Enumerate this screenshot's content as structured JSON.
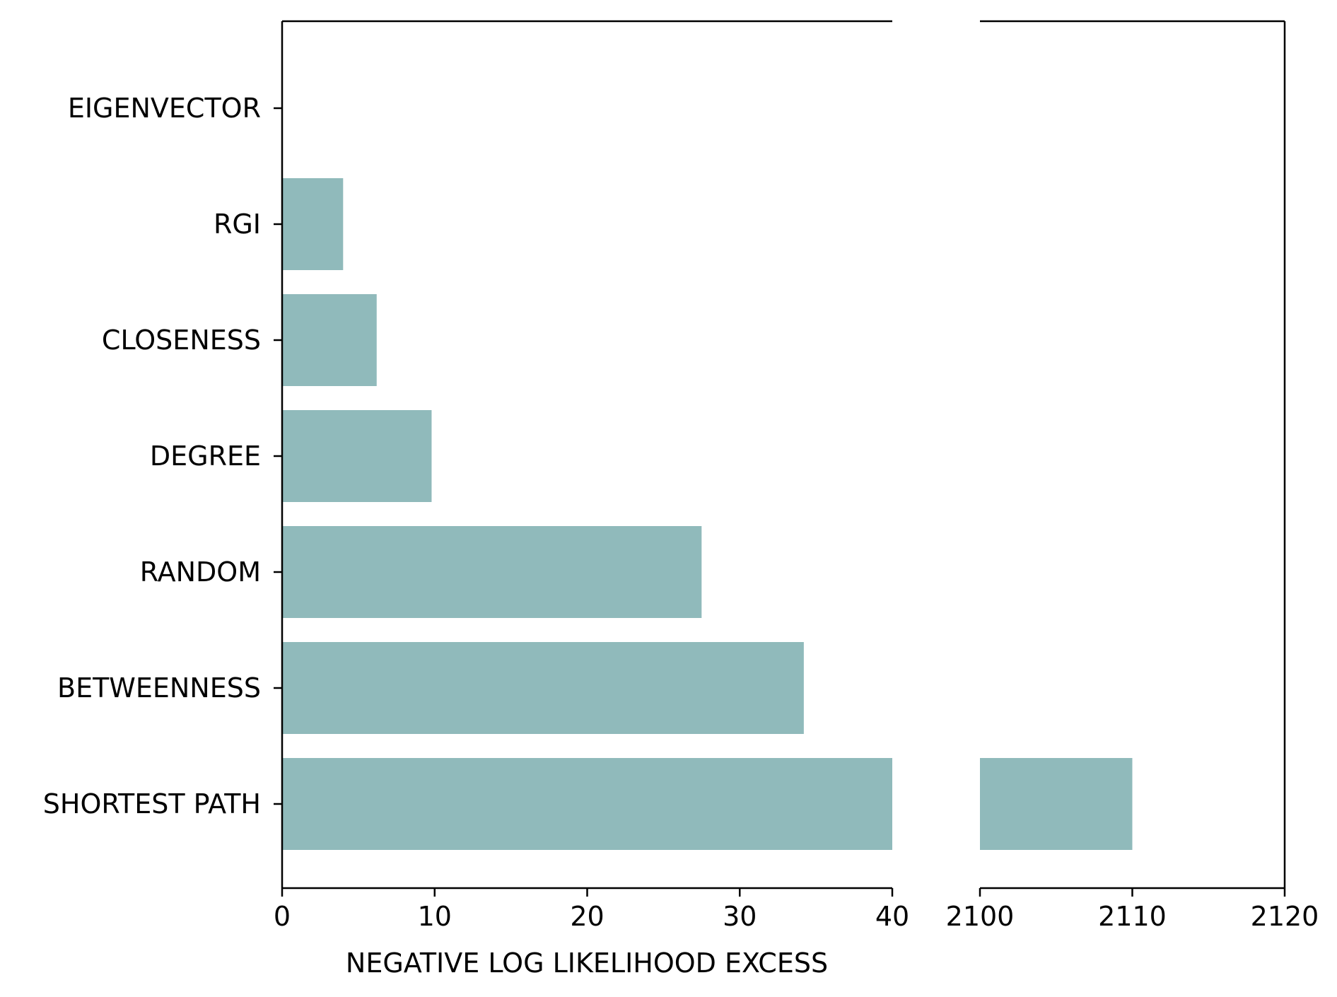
{
  "chart_data": {
    "type": "bar",
    "orientation": "horizontal",
    "title": "",
    "xlabel": "NEGATIVE LOG LIKELIHOOD EXCESS",
    "ylabel": "",
    "broken_x_axis": true,
    "segments": [
      {
        "xlim": [
          0,
          40
        ],
        "ticks": [
          0,
          10,
          20,
          30,
          40
        ]
      },
      {
        "xlim": [
          2100,
          2120
        ],
        "ticks": [
          2100,
          2110,
          2120
        ]
      }
    ],
    "categories": [
      "EIGENVECTOR",
      "RGI",
      "CLOSENESS",
      "DEGREE",
      "RANDOM",
      "BETWEENNESS",
      "SHORTEST PATH"
    ],
    "values": [
      0,
      4.0,
      6.2,
      9.8,
      27.5,
      34.2,
      2110
    ],
    "bar_color": "#90babb",
    "grid": false,
    "legend": "none"
  }
}
